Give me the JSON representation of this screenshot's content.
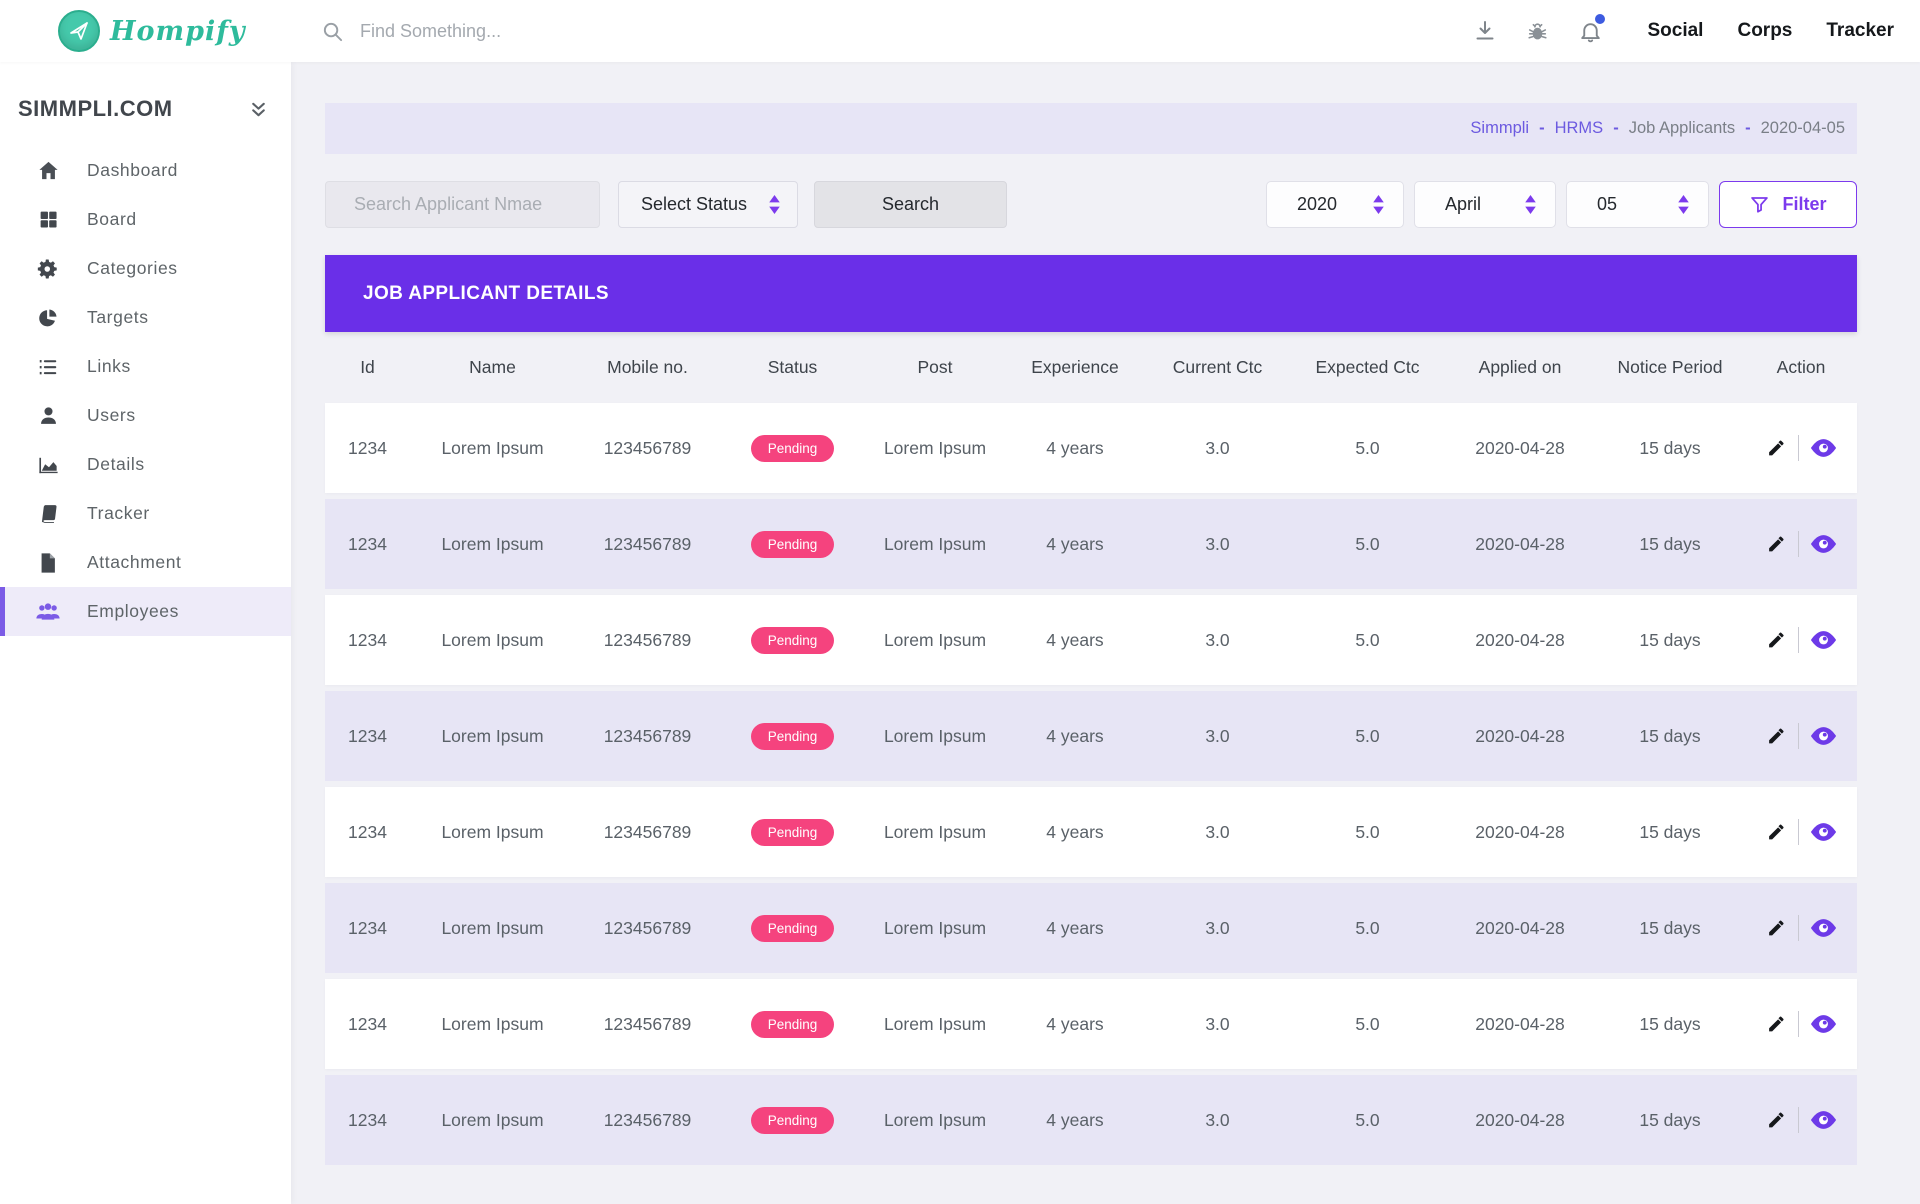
{
  "colors": {
    "banner_purple": "#6A2FE8",
    "accent_purple": "#7C3AED",
    "sidebar_active_purple": "#7B5BE6",
    "link_purple": "#6C5AE0",
    "pending_pink": "#F5437E",
    "logo_teal": "#2EBB9C",
    "notification_blue": "#3D5BE0",
    "row_lavender": "#E7E5F5",
    "breadcrumb_lavender": "#E7E5F6",
    "page_bg": "#F1F1F6"
  },
  "header": {
    "logo_text": "Hompify",
    "search_placeholder": "Find Something...",
    "icons": [
      "download-icon",
      "bug-icon",
      "bell-icon"
    ],
    "nav_links": [
      {
        "label": "Social"
      },
      {
        "label": "Corps"
      },
      {
        "label": "Tracker"
      }
    ]
  },
  "sidebar": {
    "title": "SIMMPLI.COM",
    "items": [
      {
        "label": "Dashboard",
        "icon": "home-icon",
        "active": false
      },
      {
        "label": "Board",
        "icon": "grid-icon",
        "active": false
      },
      {
        "label": "Categories",
        "icon": "gear-icon",
        "active": false
      },
      {
        "label": "Targets",
        "icon": "pie-chart-icon",
        "active": false
      },
      {
        "label": "Links",
        "icon": "list-icon",
        "active": false
      },
      {
        "label": "Users",
        "icon": "user-icon",
        "active": false
      },
      {
        "label": "Details",
        "icon": "area-chart-icon",
        "active": false
      },
      {
        "label": "Tracker",
        "icon": "book-icon",
        "active": false
      },
      {
        "label": "Attachment",
        "icon": "file-icon",
        "active": false
      },
      {
        "label": "Employees",
        "icon": "people-icon",
        "active": true
      }
    ]
  },
  "breadcrumb": {
    "separator": "-",
    "items": [
      {
        "label": "Simmpli",
        "link": true
      },
      {
        "label": "HRMS",
        "link": true
      },
      {
        "label": "Job Applicants",
        "link": false
      },
      {
        "label": "2020-04-05",
        "link": false
      }
    ]
  },
  "filters": {
    "search_placeholder": "Search Applicant Nmae",
    "status_select_value": "Select Status",
    "search_button_label": "Search",
    "year_select_value": "2020",
    "month_select_value": "April",
    "day_select_value": "05",
    "filter_button_label": "Filter"
  },
  "table": {
    "title": "JOB APPLICANT DETAILS",
    "columns": [
      "Id",
      "Name",
      "Mobile no.",
      "Status",
      "Post",
      "Experience",
      "Current Ctc",
      "Expected Ctc",
      "Applied on",
      "Notice Period",
      "Action"
    ],
    "rows": [
      {
        "id": "1234",
        "name": "Lorem Ipsum",
        "mobile": "123456789",
        "status": "Pending",
        "post": "Lorem Ipsum",
        "experience": "4 years",
        "current_ctc": "3.0",
        "expected_ctc": "5.0",
        "applied_on": "2020-04-28",
        "notice_period": "15 days"
      },
      {
        "id": "1234",
        "name": "Lorem Ipsum",
        "mobile": "123456789",
        "status": "Pending",
        "post": "Lorem Ipsum",
        "experience": "4 years",
        "current_ctc": "3.0",
        "expected_ctc": "5.0",
        "applied_on": "2020-04-28",
        "notice_period": "15 days"
      },
      {
        "id": "1234",
        "name": "Lorem Ipsum",
        "mobile": "123456789",
        "status": "Pending",
        "post": "Lorem Ipsum",
        "experience": "4 years",
        "current_ctc": "3.0",
        "expected_ctc": "5.0",
        "applied_on": "2020-04-28",
        "notice_period": "15 days"
      },
      {
        "id": "1234",
        "name": "Lorem Ipsum",
        "mobile": "123456789",
        "status": "Pending",
        "post": "Lorem Ipsum",
        "experience": "4 years",
        "current_ctc": "3.0",
        "expected_ctc": "5.0",
        "applied_on": "2020-04-28",
        "notice_period": "15 days"
      },
      {
        "id": "1234",
        "name": "Lorem Ipsum",
        "mobile": "123456789",
        "status": "Pending",
        "post": "Lorem Ipsum",
        "experience": "4 years",
        "current_ctc": "3.0",
        "expected_ctc": "5.0",
        "applied_on": "2020-04-28",
        "notice_period": "15 days"
      },
      {
        "id": "1234",
        "name": "Lorem Ipsum",
        "mobile": "123456789",
        "status": "Pending",
        "post": "Lorem Ipsum",
        "experience": "4 years",
        "current_ctc": "3.0",
        "expected_ctc": "5.0",
        "applied_on": "2020-04-28",
        "notice_period": "15 days"
      },
      {
        "id": "1234",
        "name": "Lorem Ipsum",
        "mobile": "123456789",
        "status": "Pending",
        "post": "Lorem Ipsum",
        "experience": "4 years",
        "current_ctc": "3.0",
        "expected_ctc": "5.0",
        "applied_on": "2020-04-28",
        "notice_period": "15 days"
      },
      {
        "id": "1234",
        "name": "Lorem Ipsum",
        "mobile": "123456789",
        "status": "Pending",
        "post": "Lorem Ipsum",
        "experience": "4 years",
        "current_ctc": "3.0",
        "expected_ctc": "5.0",
        "applied_on": "2020-04-28",
        "notice_period": "15 days"
      }
    ],
    "row_actions": [
      "edit-icon",
      "view-icon"
    ]
  }
}
